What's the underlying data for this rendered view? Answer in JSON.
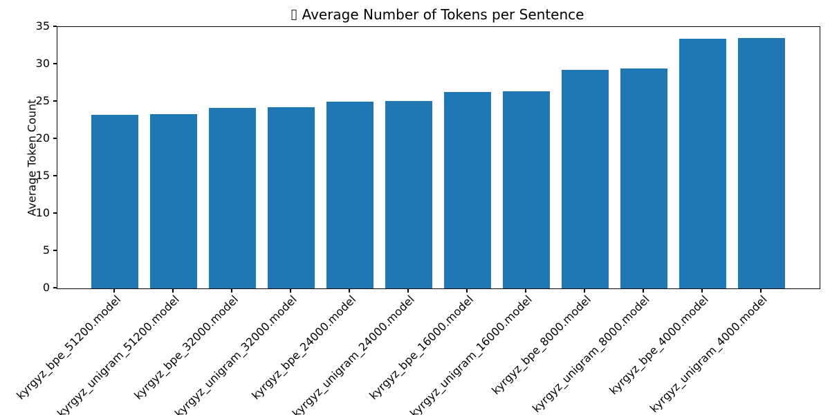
{
  "chart_data": {
    "type": "bar",
    "title": "Average Number of Tokens per Sentence",
    "title_prefix_icon": "missing-glyph",
    "xlabel": "",
    "ylabel": "Average Token Count",
    "categories": [
      "kyrgyz_bpe_51200.model",
      "kyrgyz_unigram_51200.model",
      "kyrgyz_bpe_32000.model",
      "kyrgyz_unigram_32000.model",
      "kyrgyz_bpe_24000.model",
      "kyrgyz_unigram_24000.model",
      "kyrgyz_bpe_16000.model",
      "kyrgyz_unigram_16000.model",
      "kyrgyz_bpe_8000.model",
      "kyrgyz_unigram_8000.model",
      "kyrgyz_bpe_4000.model",
      "kyrgyz_unigram_4000.model"
    ],
    "values": [
      23.2,
      23.3,
      24.2,
      24.3,
      25.0,
      25.1,
      26.3,
      26.4,
      29.3,
      29.4,
      33.4,
      33.5
    ],
    "yticks": [
      0,
      5,
      10,
      15,
      20,
      25,
      30,
      35
    ],
    "ylim": [
      0,
      35
    ],
    "bar_color": "#1f77b4",
    "grid": false,
    "legend": "none",
    "x_tick_label_rotation_deg": 45
  }
}
